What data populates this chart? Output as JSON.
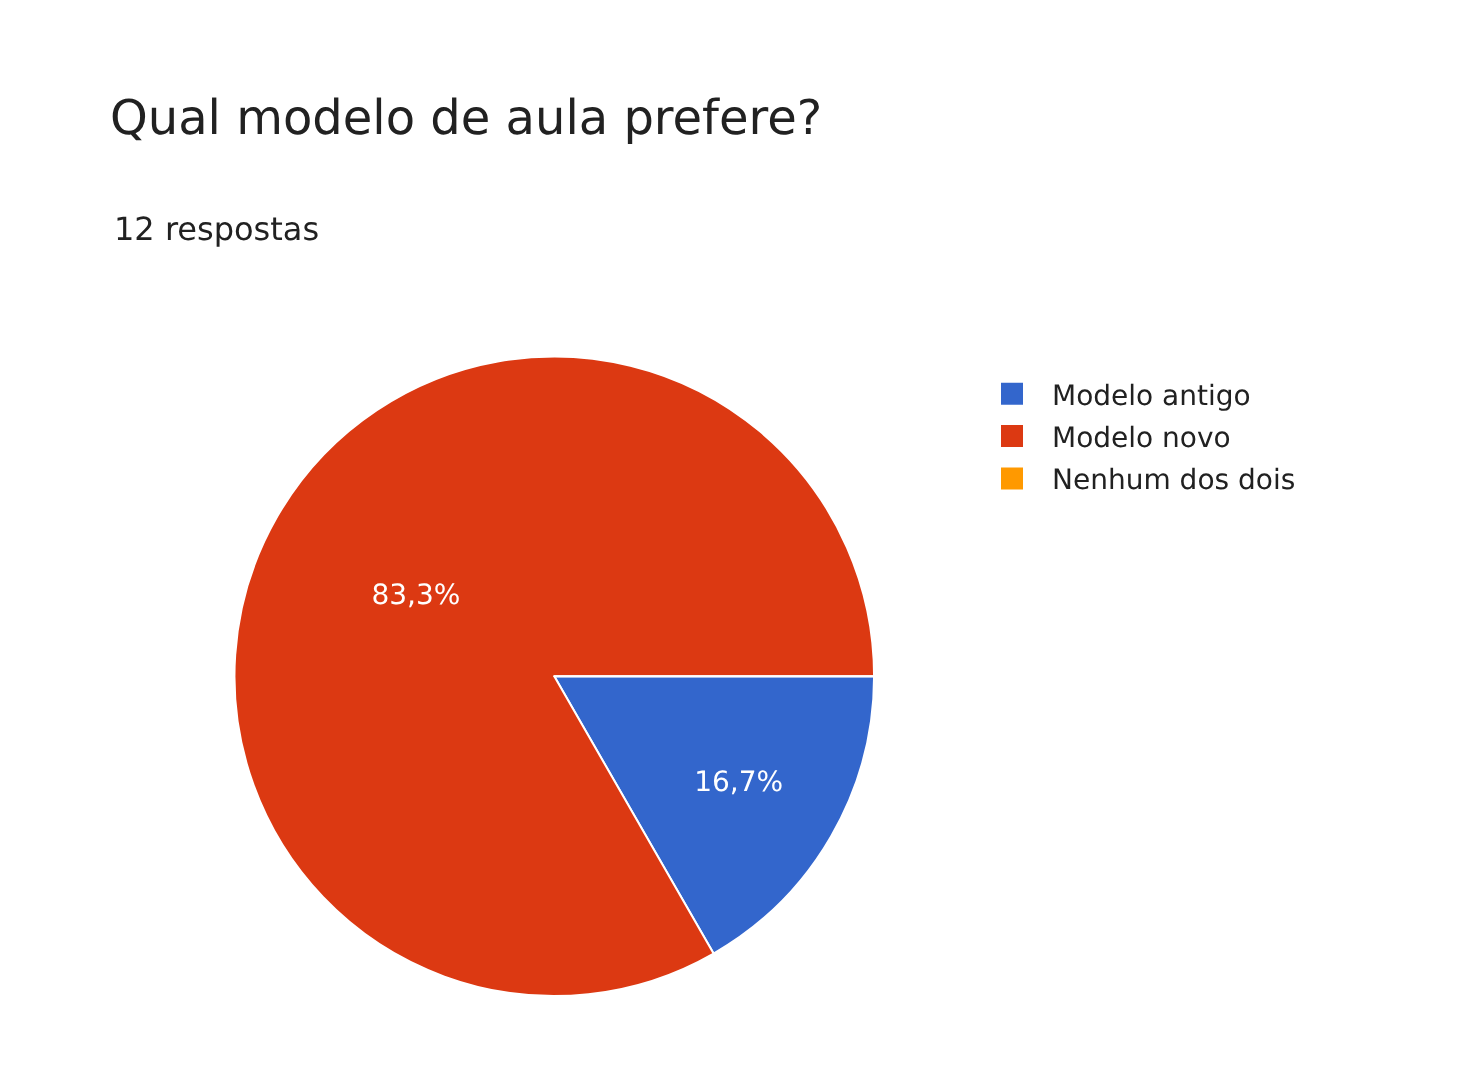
{
  "chart_data": {
    "type": "pie",
    "title": "Qual modelo de aula prefere?",
    "subtitle": "12 respostas",
    "categories": [
      "Modelo antigo",
      "Modelo novo",
      "Nenhum dos dois"
    ],
    "values": [
      16.7,
      83.3,
      0
    ],
    "colors": [
      "#3366cc",
      "#dc3912",
      "#ff9900"
    ],
    "value_labels": [
      "16,7%",
      "83,3%",
      null
    ],
    "legend": "top right"
  }
}
